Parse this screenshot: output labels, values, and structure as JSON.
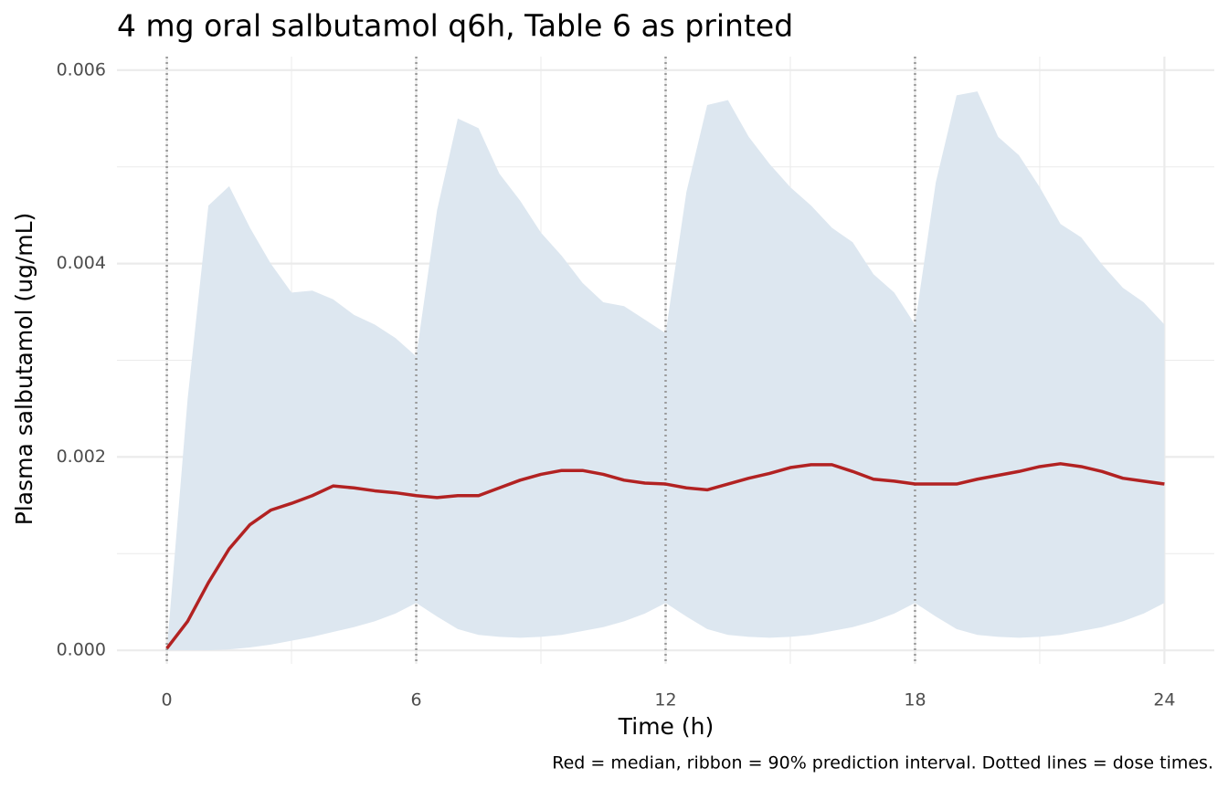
{
  "chart_data": {
    "type": "ribbon",
    "title": "4 mg oral salbutamol q6h, Table 6 as printed",
    "x_label": "Time (h)",
    "y_label": "Plasma salbutamol (ug/mL)",
    "caption": "Red = median, ribbon = 90% prediction interval. Dotted lines = dose times.",
    "xlim": [
      -1.2,
      25.2
    ],
    "ylim": [
      -0.00014,
      0.00614
    ],
    "xticks": [
      0,
      6,
      12,
      18,
      24
    ],
    "yticks": [
      {
        "value": 0,
        "label": "0.000"
      },
      {
        "value": 0.002,
        "label": "0.002"
      },
      {
        "value": 0.004,
        "label": "0.004"
      },
      {
        "value": 0.006,
        "label": "0.006"
      }
    ],
    "x_minor_ticks": [
      3,
      9,
      15,
      21
    ],
    "y_minor_ticks": [
      0.001,
      0.003,
      0.005
    ],
    "grid": true,
    "dose_times": [
      0,
      6,
      12,
      18
    ],
    "x": [
      0,
      0.5,
      1,
      1.5,
      2,
      2.5,
      3,
      3.5,
      4,
      4.5,
      5,
      5.5,
      6,
      6.5,
      7,
      7.5,
      8,
      8.5,
      9,
      9.5,
      10,
      10.5,
      11,
      11.5,
      12,
      12.5,
      13,
      13.5,
      14,
      14.5,
      15,
      15.5,
      16,
      16.5,
      17,
      17.5,
      18,
      18.5,
      19,
      19.5,
      20,
      20.5,
      21,
      21.5,
      22,
      22.5,
      23,
      23.5,
      24
    ],
    "ribbon": {
      "color": "#dde7f0",
      "upper": [
        0,
        0.0026,
        0.0046,
        0.0048,
        0.00437,
        0.004,
        0.0037,
        0.00372,
        0.00363,
        0.00347,
        0.00337,
        0.00323,
        0.00304,
        0.00455,
        0.0055,
        0.0054,
        0.00493,
        0.00465,
        0.00432,
        0.00408,
        0.0038,
        0.0036,
        0.00356,
        0.00342,
        0.00328,
        0.00474,
        0.00564,
        0.00569,
        0.00531,
        0.00503,
        0.00479,
        0.0046,
        0.00437,
        0.00422,
        0.00389,
        0.0037,
        0.00337,
        0.00484,
        0.00574,
        0.00578,
        0.00531,
        0.00512,
        0.00479,
        0.00441,
        0.00427,
        0.00399,
        0.00375,
        0.0036,
        0.00337
      ],
      "lower": [
        0,
        0,
        0,
        1e-05,
        3e-05,
        6e-05,
        0.0001,
        0.00014,
        0.00019,
        0.00024,
        0.0003,
        0.00038,
        0.00049,
        0.00035,
        0.00022,
        0.00016,
        0.00014,
        0.00013,
        0.00014,
        0.00016,
        0.0002,
        0.00024,
        0.0003,
        0.00038,
        0.00049,
        0.00035,
        0.00022,
        0.00016,
        0.00014,
        0.00013,
        0.00014,
        0.00016,
        0.0002,
        0.00024,
        0.0003,
        0.00038,
        0.00049,
        0.00035,
        0.00022,
        0.00016,
        0.00014,
        0.00013,
        0.00014,
        0.00016,
        0.0002,
        0.00024,
        0.0003,
        0.00038,
        0.00049
      ]
    },
    "median": {
      "color": "#b22222",
      "values": [
        2e-05,
        0.0003,
        0.0007,
        0.00105,
        0.0013,
        0.00145,
        0.00152,
        0.0016,
        0.0017,
        0.00168,
        0.00165,
        0.00163,
        0.0016,
        0.00158,
        0.0016,
        0.0016,
        0.00168,
        0.00176,
        0.00182,
        0.00186,
        0.00186,
        0.00182,
        0.00176,
        0.00173,
        0.00172,
        0.00168,
        0.00166,
        0.00172,
        0.00178,
        0.00183,
        0.00189,
        0.00192,
        0.00192,
        0.00185,
        0.00177,
        0.00175,
        0.00172,
        0.00172,
        0.00172,
        0.00177,
        0.00181,
        0.00185,
        0.0019,
        0.00193,
        0.0019,
        0.00185,
        0.00178,
        0.00175,
        0.00172
      ]
    }
  }
}
